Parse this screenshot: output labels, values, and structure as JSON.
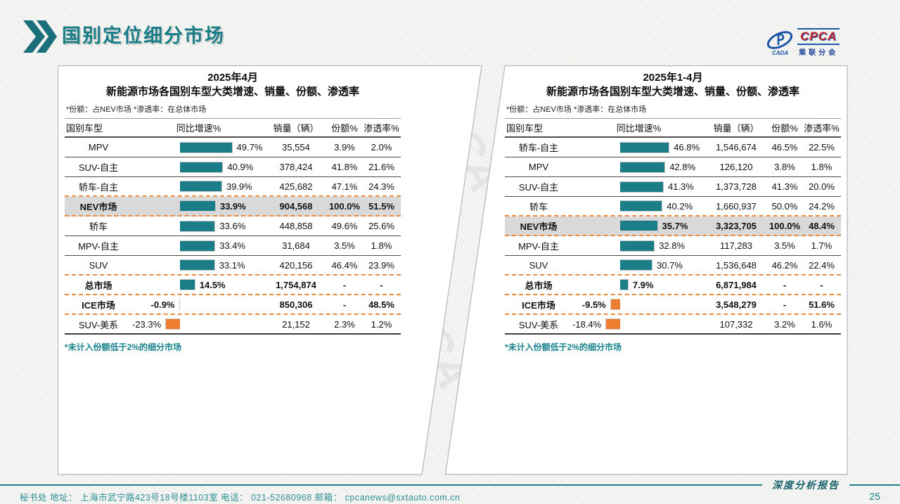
{
  "page": {
    "title": "国别定位细分市场",
    "watermark": "CPCA",
    "report_label": "深度分析报告",
    "page_number": "25",
    "footer_contact": "秘书处   地址： 上海市武宁路423号18号楼1103室  电话： 021-52680968   邮箱： cpcanews@sxtauto.com.cn"
  },
  "logo": {
    "en": "CPCA",
    "cn": "乘联分会",
    "sub": "CADA"
  },
  "colors": {
    "accent_teal": "#1A7D87",
    "accent_orange": "#ED7D31",
    "highlight_row": "#D9D9D9",
    "dashed_border": "#EE8A3C"
  },
  "chart_data": [
    {
      "type": "table",
      "subtype": "table-with-bars",
      "title_line1": "2025年4月",
      "title_line2": "新能源市场各国别车型大类增速、销量、份额、渗透率",
      "note": "*份额：占NEV市场   *渗透率：在总体市场",
      "footnote": "*未计入份额低于2%的细分市场",
      "columns": [
        "国别车型",
        "同比增速%",
        "销量（辆）",
        "份额%",
        "渗透率%"
      ],
      "bar_axis": "growth_pct",
      "xlim": [
        -30,
        55
      ],
      "rows": [
        {
          "name": "MPV",
          "growth_pct": 49.7,
          "growth_label": "49.7%",
          "sales": "35,554",
          "share": "3.9%",
          "penetration": "2.0%",
          "emphasis": "normal",
          "separator": "solid"
        },
        {
          "name": "SUV-自主",
          "growth_pct": 40.9,
          "growth_label": "40.9%",
          "sales": "378,424",
          "share": "41.8%",
          "penetration": "21.6%",
          "emphasis": "normal",
          "separator": "solid"
        },
        {
          "name": "轿车-自主",
          "growth_pct": 39.9,
          "growth_label": "39.9%",
          "sales": "425,682",
          "share": "47.1%",
          "penetration": "24.3%",
          "emphasis": "normal",
          "separator": "dashed"
        },
        {
          "name": "NEV市场",
          "growth_pct": 33.9,
          "growth_label": "33.9%",
          "sales": "904,568",
          "share": "100.0%",
          "penetration": "51.5%",
          "emphasis": "highlight",
          "separator": "dashed"
        },
        {
          "name": "轿车",
          "growth_pct": 33.6,
          "growth_label": "33.6%",
          "sales": "448,858",
          "share": "49.6%",
          "penetration": "25.6%",
          "emphasis": "normal",
          "separator": "solid"
        },
        {
          "name": "MPV-自主",
          "growth_pct": 33.4,
          "growth_label": "33.4%",
          "sales": "31,684",
          "share": "3.5%",
          "penetration": "1.8%",
          "emphasis": "normal",
          "separator": "solid"
        },
        {
          "name": "SUV",
          "growth_pct": 33.1,
          "growth_label": "33.1%",
          "sales": "420,156",
          "share": "46.4%",
          "penetration": "23.9%",
          "emphasis": "normal",
          "separator": "dashed"
        },
        {
          "name": "总市场",
          "growth_pct": 14.5,
          "growth_label": "14.5%",
          "sales": "1,754,874",
          "share": "-",
          "penetration": "-",
          "emphasis": "bold",
          "separator": "dashed"
        },
        {
          "name": "ICE市场",
          "growth_pct": -0.9,
          "growth_label": "-0.9%",
          "sales": "850,306",
          "share": "-",
          "penetration": "48.5%",
          "emphasis": "bold",
          "separator": "dashed"
        },
        {
          "name": "SUV-美系",
          "growth_pct": -23.3,
          "growth_label": "-23.3%",
          "sales": "21,152",
          "share": "2.3%",
          "penetration": "1.2%",
          "emphasis": "normal",
          "separator": "end"
        }
      ]
    },
    {
      "type": "table",
      "subtype": "table-with-bars",
      "title_line1": "2025年1-4月",
      "title_line2": "新能源市场各国别车型大类增速、销量、份额、渗透率",
      "note": "*份额：占NEV市场   *渗透率：在总体市场",
      "footnote": "*未计入份额低于2%的细分市场",
      "columns": [
        "国别车型",
        "同比增速%",
        "销量（辆）",
        "份额%",
        "渗透率%"
      ],
      "bar_axis": "growth_pct",
      "xlim": [
        -30,
        55
      ],
      "rows": [
        {
          "name": "轿车-自主",
          "growth_pct": 46.8,
          "growth_label": "46.8%",
          "sales": "1,546,674",
          "share": "46.5%",
          "penetration": "22.5%",
          "emphasis": "normal",
          "separator": "solid"
        },
        {
          "name": "MPV",
          "growth_pct": 42.8,
          "growth_label": "42.8%",
          "sales": "126,120",
          "share": "3.8%",
          "penetration": "1.8%",
          "emphasis": "normal",
          "separator": "solid"
        },
        {
          "name": "SUV-自主",
          "growth_pct": 41.3,
          "growth_label": "41.3%",
          "sales": "1,373,728",
          "share": "41.3%",
          "penetration": "20.0%",
          "emphasis": "normal",
          "separator": "solid"
        },
        {
          "name": "轿车",
          "growth_pct": 40.2,
          "growth_label": "40.2%",
          "sales": "1,660,937",
          "share": "50.0%",
          "penetration": "24.2%",
          "emphasis": "normal",
          "separator": "dashed"
        },
        {
          "name": "NEV市场",
          "growth_pct": 35.7,
          "growth_label": "35.7%",
          "sales": "3,323,705",
          "share": "100.0%",
          "penetration": "48.4%",
          "emphasis": "highlight",
          "separator": "dashed"
        },
        {
          "name": "MPV-自主",
          "growth_pct": 32.8,
          "growth_label": "32.8%",
          "sales": "117,283",
          "share": "3.5%",
          "penetration": "1.7%",
          "emphasis": "normal",
          "separator": "solid"
        },
        {
          "name": "SUV",
          "growth_pct": 30.7,
          "growth_label": "30.7%",
          "sales": "1,536,648",
          "share": "46.2%",
          "penetration": "22.4%",
          "emphasis": "normal",
          "separator": "dashed"
        },
        {
          "name": "总市场",
          "growth_pct": 7.9,
          "growth_label": "7.9%",
          "sales": "6,871,984",
          "share": "-",
          "penetration": "-",
          "emphasis": "bold",
          "separator": "dashed"
        },
        {
          "name": "ICE市场",
          "growth_pct": -9.5,
          "growth_label": "-9.5%",
          "sales": "3,548,279",
          "share": "-",
          "penetration": "51.6%",
          "emphasis": "bold",
          "separator": "dashed"
        },
        {
          "name": "SUV-美系",
          "growth_pct": -18.4,
          "growth_label": "-18.4%",
          "sales": "107,332",
          "share": "3.2%",
          "penetration": "1.6%",
          "emphasis": "normal",
          "separator": "end"
        }
      ]
    }
  ]
}
